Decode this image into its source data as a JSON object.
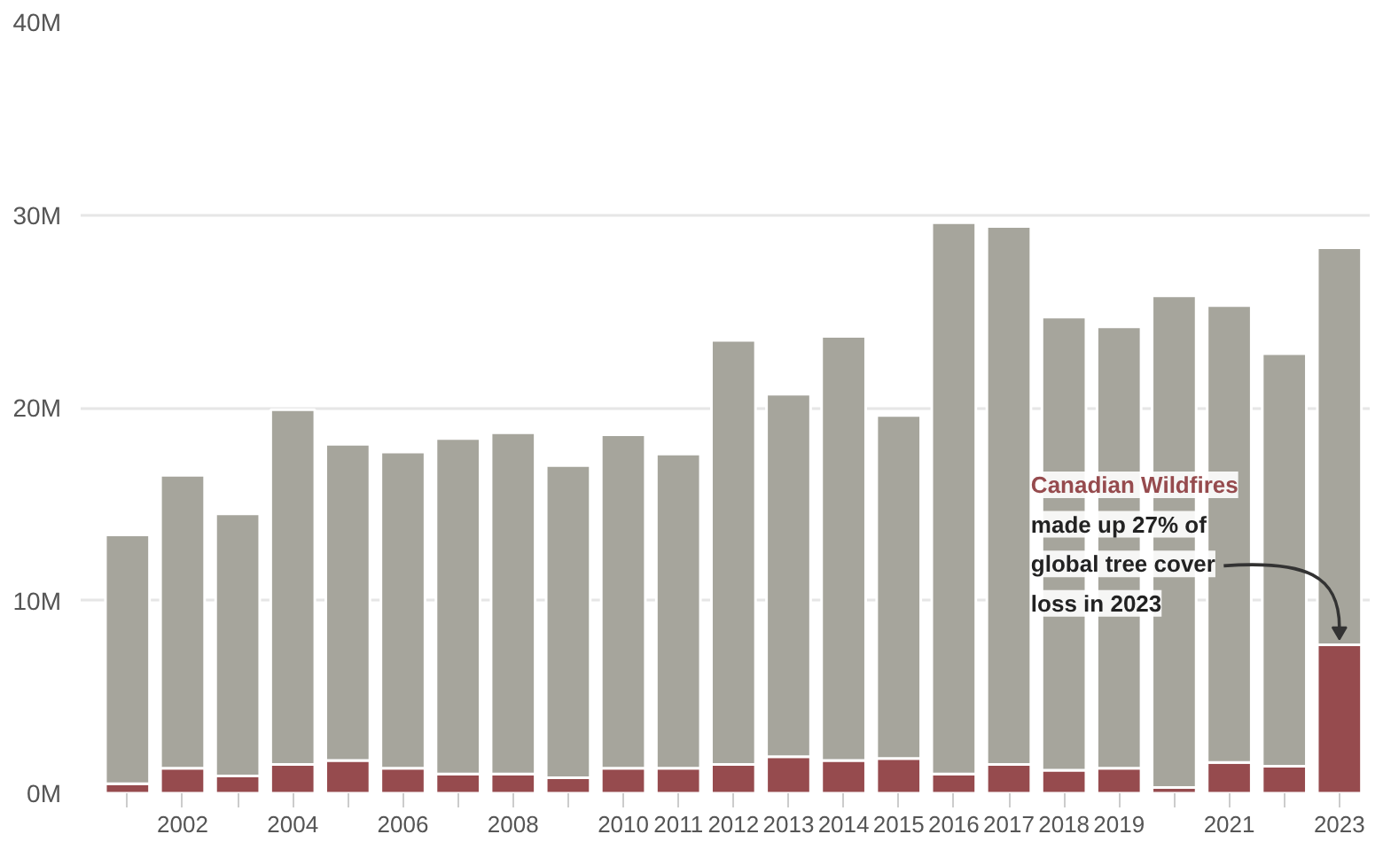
{
  "chart_data": {
    "type": "bar",
    "stacked": true,
    "categories": [
      null,
      "2002",
      null,
      "2004",
      null,
      "2006",
      null,
      "2008",
      null,
      "2010",
      "2011",
      "2012",
      "2013",
      "2014",
      "2015",
      "2016",
      "2017",
      "2018",
      "2019",
      null,
      "2021",
      null,
      "2023"
    ],
    "series": [
      {
        "color": "#964b4e",
        "values": [
          500000,
          1300000,
          900000,
          1500000,
          1700000,
          1300000,
          1000000,
          1000000,
          800000,
          1300000,
          1300000,
          1500000,
          1900000,
          1700000,
          1800000,
          1000000,
          1500000,
          1200000,
          1300000,
          300000,
          1600000,
          1400000,
          7700000
        ]
      },
      {
        "color": "#a6a59c",
        "values": [
          12900000,
          15200000,
          13600000,
          18400000,
          16400000,
          16400000,
          17400000,
          17700000,
          16200000,
          17300000,
          16300000,
          22000000,
          18800000,
          22000000,
          17800000,
          28600000,
          27900000,
          23500000,
          22900000,
          25500000,
          23700000,
          21400000,
          20600000
        ]
      }
    ],
    "ylim": [
      0,
      40000000
    ],
    "yticks": [
      {
        "value": 0,
        "label": "0M"
      },
      {
        "value": 10000000,
        "label": "10M"
      },
      {
        "value": 20000000,
        "label": "20M"
      },
      {
        "value": 30000000,
        "label": "30M"
      },
      {
        "value": 40000000,
        "label": "40M"
      }
    ],
    "grid": "y",
    "annotations": [
      "Canadian Wildfires",
      "made up 27% of global tree cover loss in 2023"
    ]
  }
}
